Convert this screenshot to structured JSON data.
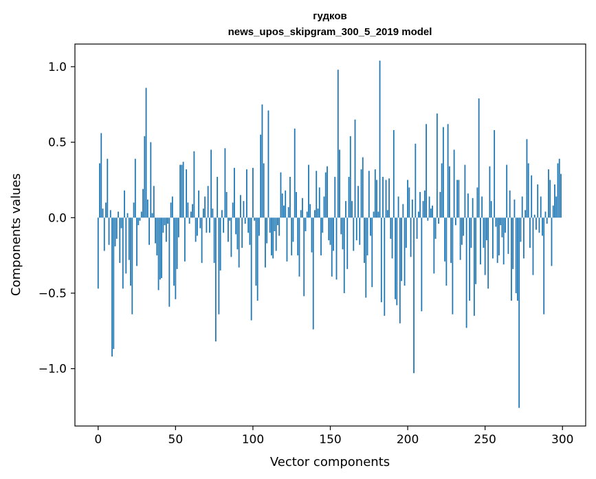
{
  "chart_data": {
    "type": "bar",
    "title": "гудков",
    "subtitle": "news_upos_skipgram_300_5_2019 model",
    "xlabel": "Vector components",
    "ylabel": "Components values",
    "xlim": [
      -15,
      315
    ],
    "ylim": [
      -1.38,
      1.15
    ],
    "xticks": [
      0,
      50,
      100,
      150,
      200,
      250,
      300
    ],
    "xtick_labels": [
      "0",
      "50",
      "100",
      "150",
      "200",
      "250",
      "300"
    ],
    "yticks": [
      -1.0,
      -0.5,
      0.0,
      0.5,
      1.0
    ],
    "ytick_labels": [
      "−1.0",
      "−0.5",
      "0.0",
      "0.5",
      "1.0"
    ],
    "bar_color": "#1f77b4",
    "grid": false,
    "values": [
      -0.47,
      0.36,
      0.56,
      0.06,
      -0.22,
      0.1,
      0.39,
      -0.18,
      0.05,
      -0.92,
      -0.87,
      -0.19,
      -0.14,
      0.04,
      -0.3,
      -0.07,
      -0.47,
      0.18,
      -0.37,
      0.03,
      -0.28,
      -0.45,
      -0.64,
      0.1,
      0.39,
      -0.32,
      -0.05,
      -0.02,
      0.04,
      0.19,
      0.54,
      0.86,
      0.12,
      -0.18,
      0.5,
      0.03,
      0.21,
      -0.17,
      -0.25,
      -0.48,
      -0.41,
      -0.4,
      -0.1,
      -0.05,
      -0.16,
      -0.04,
      -0.59,
      0.1,
      0.14,
      -0.45,
      -0.54,
      -0.34,
      -0.13,
      0.35,
      0.35,
      0.37,
      -0.29,
      0.32,
      0.1,
      -0.04,
      0.04,
      0.09,
      0.44,
      -0.16,
      -0.12,
      0.18,
      -0.07,
      -0.3,
      0.06,
      0.14,
      -0.1,
      0.21,
      -0.1,
      0.45,
      0.06,
      -0.3,
      -0.82,
      0.27,
      -0.64,
      -0.35,
      0.05,
      -0.1,
      0.46,
      0.17,
      -0.16,
      -0.02,
      -0.26,
      0.1,
      0.33,
      -0.11,
      -0.21,
      -0.33,
      0.15,
      -0.2,
      0.11,
      -0.04,
      0.32,
      -0.1,
      -0.18,
      -0.68,
      0.33,
      -0.02,
      -0.45,
      -0.55,
      -0.12,
      0.55,
      0.75,
      0.36,
      -0.33,
      -0.17,
      0.71,
      -0.1,
      -0.25,
      -0.27,
      -0.09,
      -0.22,
      -0.05,
      -0.12,
      0.3,
      0.16,
      0.08,
      0.18,
      -0.29,
      0.07,
      0.27,
      -0.25,
      -0.16,
      0.59,
      0.17,
      -0.25,
      -0.39,
      0.05,
      0.13,
      -0.52,
      -0.09,
      0.04,
      0.35,
      0.09,
      -0.23,
      -0.74,
      0.05,
      0.31,
      0.06,
      0.2,
      -0.25,
      -0.1,
      0.14,
      0.3,
      0.34,
      -0.15,
      -0.18,
      -0.39,
      -0.22,
      0.27,
      -0.41,
      0.98,
      0.45,
      -0.11,
      -0.21,
      -0.5,
      0.11,
      -0.34,
      0.27,
      0.54,
      0.11,
      -0.22,
      0.65,
      -0.15,
      0.21,
      -0.18,
      0.32,
      0.4,
      -0.3,
      -0.53,
      -0.25,
      0.31,
      -0.12,
      -0.46,
      0.04,
      0.32,
      0.25,
      0.04,
      1.04,
      -0.56,
      0.27,
      -0.65,
      0.25,
      0.05,
      0.26,
      -0.14,
      -0.27,
      0.58,
      -0.54,
      -0.58,
      0.14,
      -0.7,
      -0.42,
      0.09,
      -0.45,
      -0.2,
      0.25,
      0.2,
      -0.26,
      0.12,
      -1.03,
      0.49,
      -0.14,
      0.04,
      0.17,
      -0.62,
      0.11,
      0.18,
      0.62,
      -0.02,
      0.14,
      0.06,
      0.08,
      -0.37,
      -0.14,
      0.69,
      -0.04,
      0.17,
      0.36,
      0.6,
      -0.29,
      -0.45,
      0.62,
      0.34,
      -0.3,
      -0.64,
      0.45,
      -0.05,
      0.25,
      0.25,
      -0.28,
      -0.18,
      -0.12,
      0.35,
      -0.73,
      0.16,
      -0.55,
      -0.2,
      0.13,
      -0.65,
      -0.44,
      0.2,
      0.79,
      -0.31,
      0.14,
      -0.2,
      -0.38,
      -0.15,
      -0.47,
      0.34,
      0.11,
      -0.27,
      0.58,
      -0.06,
      -0.3,
      -0.25,
      -0.05,
      -0.13,
      -0.31,
      -0.1,
      0.35,
      -0.24,
      0.18,
      -0.55,
      -0.34,
      0.12,
      -0.5,
      -0.55,
      -1.26,
      -0.16,
      0.14,
      -0.27,
      0.05,
      0.52,
      0.36,
      -0.2,
      0.28,
      -0.38,
      0.02,
      -0.08,
      0.22,
      -0.1,
      0.14,
      -0.12,
      -0.64,
      0.04,
      -0.04,
      0.32,
      0.25,
      -0.32,
      0.08,
      0.22,
      0.14,
      0.36,
      0.39,
      0.29
    ]
  }
}
